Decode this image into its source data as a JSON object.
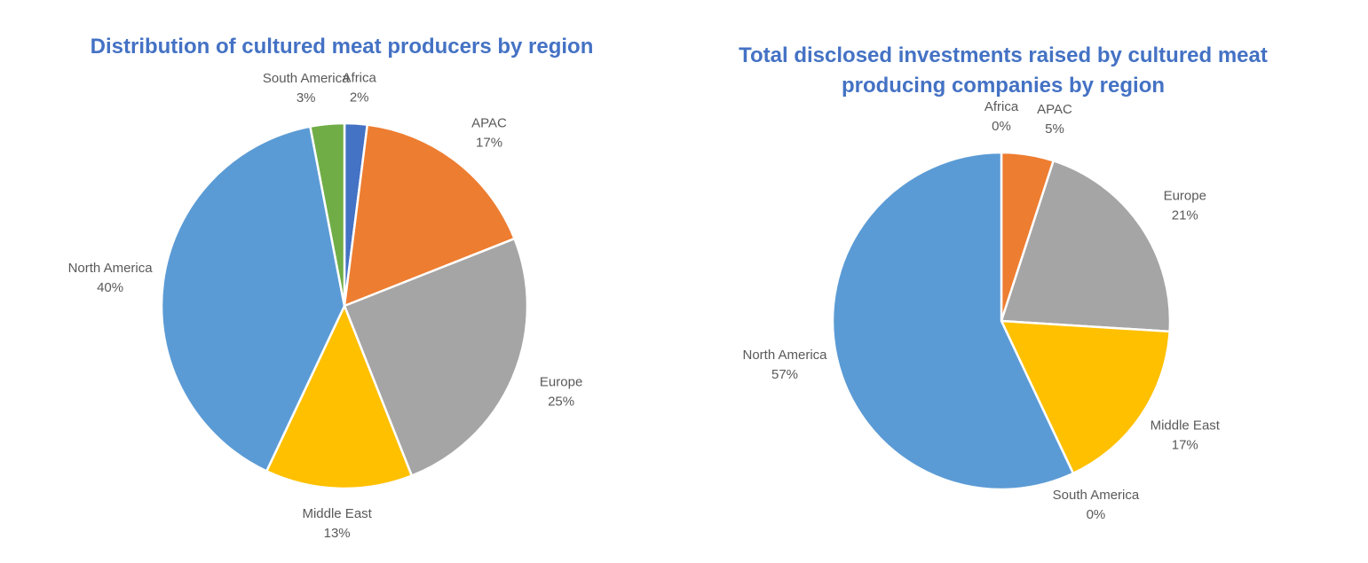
{
  "chart_data": [
    {
      "type": "pie",
      "title": "Distribution of cultured meat producers by region",
      "categories": [
        "Africa",
        "APAC",
        "Europe",
        "Middle East",
        "North America",
        "South America"
      ],
      "values": [
        2,
        17,
        25,
        13,
        40,
        3
      ],
      "value_labels": [
        "2%",
        "17%",
        "25%",
        "13%",
        "40%",
        "3%"
      ],
      "colors": [
        "#4472c4",
        "#ed7d31",
        "#a5a5a5",
        "#ffc000",
        "#5b9bd5",
        "#70ad47"
      ]
    },
    {
      "type": "pie",
      "title": "Total disclosed investments raised by cultured meat producing companies by region",
      "categories": [
        "Africa",
        "APAC",
        "Europe",
        "Middle East",
        "South America",
        "North America"
      ],
      "values": [
        0,
        5,
        21,
        17,
        0,
        57
      ],
      "value_labels": [
        "0%",
        "5%",
        "21%",
        "17%",
        "0%",
        "57%"
      ],
      "colors": [
        "#4472c4",
        "#ed7d31",
        "#a5a5a5",
        "#ffc000",
        "#70ad47",
        "#5b9bd5"
      ]
    }
  ]
}
